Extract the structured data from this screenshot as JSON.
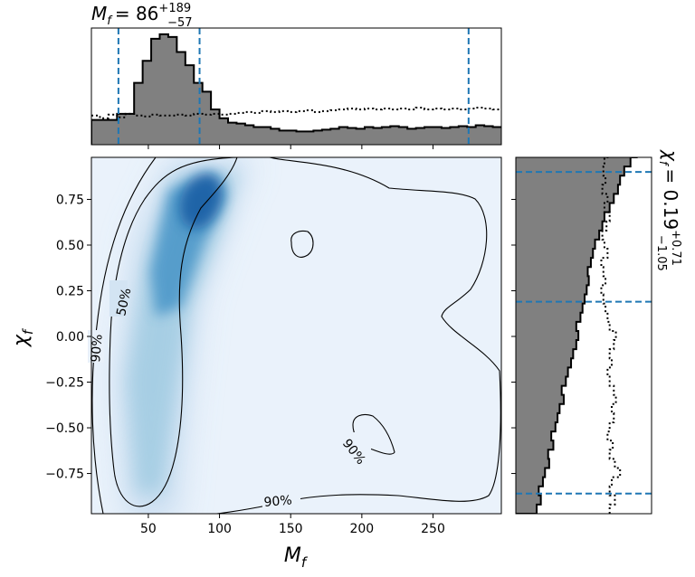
{
  "chart_data": [
    {
      "type": "histogram",
      "panel": "top-marginal",
      "title": "M_f = 86",
      "title_parts": {
        "symbol": "M",
        "sub": "f",
        "value": "= 86",
        "upper": "+189",
        "lower": "−57"
      },
      "x_range": [
        10,
        298
      ],
      "bin_width": 6,
      "quantile_lines": [
        29,
        86,
        275
      ],
      "posterior_counts": [
        28,
        28,
        28,
        35,
        35,
        70,
        95,
        120,
        125,
        122,
        105,
        90,
        70,
        60,
        40,
        30,
        25,
        24,
        22,
        20,
        20,
        18,
        16,
        16,
        15,
        15,
        16,
        17,
        18,
        20,
        19,
        18,
        20,
        19,
        20,
        21,
        20,
        18,
        19,
        20,
        20,
        19,
        20,
        21,
        20,
        22,
        21,
        20
      ],
      "prior_counts": [
        33,
        30,
        34,
        31,
        35,
        33,
        32,
        34,
        33,
        33,
        34,
        33,
        35,
        34,
        35,
        34,
        35,
        36,
        37,
        36,
        38,
        37,
        38,
        37,
        38,
        39,
        37,
        38,
        39,
        40,
        41,
        40,
        41,
        40,
        41,
        40,
        41,
        40,
        42,
        40,
        41,
        40,
        41,
        40,
        41,
        42,
        41,
        40
      ],
      "colors": {
        "fill": "#808080",
        "step": "#000000",
        "prior": "#000000",
        "quantile": "#1f77b4"
      }
    },
    {
      "type": "heatmap",
      "panel": "joint",
      "xlabel": "M",
      "xlabel_sub": "f",
      "ylabel": "χ",
      "ylabel_sub": "f",
      "xlim": [
        10,
        298
      ],
      "ylim": [
        -0.97,
        0.98
      ],
      "xticks": [
        50,
        100,
        150,
        200,
        250
      ],
      "xtick_labels": [
        "50",
        "100",
        "150",
        "200",
        "250"
      ],
      "yticks": [
        0.75,
        0.5,
        0.25,
        0.0,
        -0.25,
        -0.5,
        -0.75
      ],
      "ytick_labels": [
        "0.75",
        "0.50",
        "0.25",
        "0.00",
        "−0.25",
        "−0.50",
        "−0.75"
      ],
      "density_peak": {
        "x": 80,
        "y": 0.72
      },
      "contour_labels": [
        {
          "text": "50%",
          "x": 57,
          "y": 0.2
        },
        {
          "text": "90%",
          "x": 12,
          "y": -0.05
        },
        {
          "text": "90%",
          "x": 196,
          "y": -0.6
        },
        {
          "text": "90%",
          "x": 143,
          "y": -0.9
        }
      ],
      "colormap": "Blues"
    },
    {
      "type": "histogram",
      "panel": "right-marginal",
      "orientation": "horizontal",
      "title": "χ_f = 0.19",
      "title_parts": {
        "symbol": "χ",
        "sub": "f",
        "value": "= 0.19",
        "upper": "+0.71",
        "lower": "−1.05"
      },
      "y_range": [
        -0.97,
        0.98
      ],
      "bin_width": 0.05,
      "quantile_lines": [
        -0.86,
        0.19,
        0.9
      ],
      "posterior_counts": [
        0.02,
        0.024,
        0.022,
        0.026,
        0.028,
        0.032,
        0.031,
        0.036,
        0.034,
        0.038,
        0.04,
        0.042,
        0.046,
        0.044,
        0.048,
        0.05,
        0.053,
        0.055,
        0.058,
        0.06,
        0.058,
        0.062,
        0.064,
        0.066,
        0.068,
        0.07,
        0.069,
        0.072,
        0.074,
        0.076,
        0.08,
        0.083,
        0.085,
        0.09,
        0.094,
        0.098,
        0.1,
        0.104,
        0.11,
        0.116
      ],
      "prior_counts": [
        0.09,
        0.095,
        0.09,
        0.092,
        0.1,
        0.095,
        0.09,
        0.093,
        0.088,
        0.09,
        0.094,
        0.092,
        0.096,
        0.094,
        0.09,
        0.088,
        0.092,
        0.09,
        0.094,
        0.096,
        0.09,
        0.088,
        0.086,
        0.084,
        0.082,
        0.086,
        0.084,
        0.082,
        0.088,
        0.085,
        0.083,
        0.087,
        0.09,
        0.085,
        0.088,
        0.083,
        0.086,
        0.084,
        0.085,
        0.088
      ],
      "colors": {
        "fill": "#808080",
        "step": "#000000",
        "prior": "#000000",
        "quantile": "#1f77b4"
      }
    }
  ]
}
